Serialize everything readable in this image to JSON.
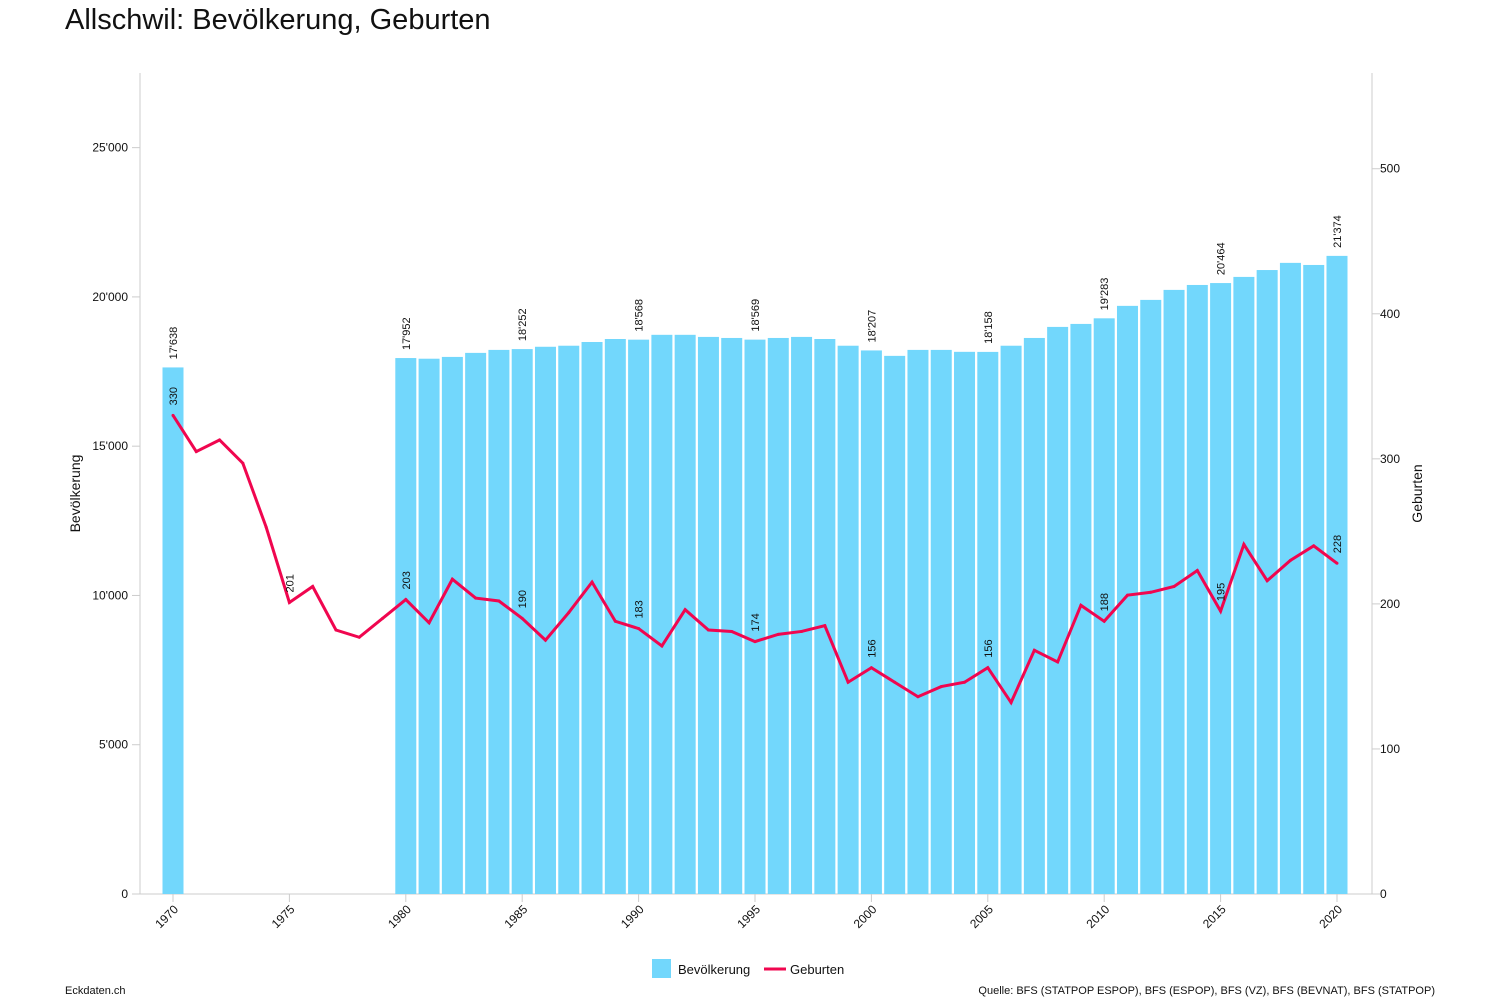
{
  "title": "Allschwil: Bevölkerung, Geburten",
  "footer": {
    "left": "Eckdaten.ch",
    "right": "Quelle: BFS (STATPOP ESPOP), BFS (ESPOP), BFS (VZ), BFS (BEVNAT), BFS (STATPOP)"
  },
  "colors": {
    "bars": "#72d7fc",
    "line": "#f0064f"
  },
  "chart_data": {
    "type": "bar+line",
    "title": "Allschwil: Bevölkerung, Geburten",
    "xlabel": "",
    "ylabel": "Bevölkerung",
    "y2label": "Geburten",
    "ylim": [
      0,
      27500
    ],
    "y2lim": [
      0,
      566
    ],
    "yticks": [
      0,
      5000,
      10000,
      15000,
      20000,
      25000
    ],
    "ytick_labels": [
      "0",
      "5'000",
      "10'000",
      "15'000",
      "20'000",
      "25'000"
    ],
    "y2ticks": [
      0,
      100,
      200,
      300,
      400,
      500
    ],
    "y2tick_labels": [
      "0",
      "100",
      "200",
      "300",
      "400",
      "500"
    ],
    "xticks": [
      1970,
      1975,
      1980,
      1985,
      1990,
      1995,
      2000,
      2005,
      2010,
      2015,
      2020
    ],
    "xtick_labels": [
      "1970",
      "1975",
      "1980",
      "1985",
      "1990",
      "1995",
      "2000",
      "2005",
      "2010",
      "2015",
      "2020"
    ],
    "legend": [
      "Bevölkerung",
      "Geburten"
    ],
    "legend_position": "bottom-center",
    "series": [
      {
        "name": "Bevölkerung",
        "type": "bar",
        "x": [
          1970,
          1980,
          1981,
          1982,
          1983,
          1984,
          1985,
          1986,
          1987,
          1988,
          1989,
          1990,
          1991,
          1992,
          1993,
          1994,
          1995,
          1996,
          1997,
          1998,
          1999,
          2000,
          2001,
          2002,
          2003,
          2004,
          2005,
          2006,
          2007,
          2008,
          2009,
          2010,
          2011,
          2012,
          2013,
          2014,
          2015,
          2016,
          2017,
          2018,
          2019,
          2020
        ],
        "values": [
          17638,
          17952,
          17930,
          17990,
          18125,
          18225,
          18252,
          18330,
          18365,
          18490,
          18590,
          18568,
          18730,
          18730,
          18660,
          18625,
          18569,
          18625,
          18660,
          18590,
          18365,
          18207,
          18025,
          18225,
          18225,
          18160,
          18158,
          18365,
          18625,
          18995,
          19095,
          19283,
          19700,
          19900,
          20235,
          20400,
          20464,
          20670,
          20900,
          21140,
          21070,
          21374
        ],
        "labels": {
          "1970": "17'638",
          "1980": "17'952",
          "1985": "18'252",
          "1990": "18'568",
          "1995": "18'569",
          "2000": "18'207",
          "2005": "18'158",
          "2010": "19'283",
          "2015": "20'464",
          "2020": "21'374"
        }
      },
      {
        "name": "Geburten",
        "type": "line",
        "x": [
          1970,
          1971,
          1972,
          1973,
          1974,
          1975,
          1976,
          1977,
          1978,
          1979,
          1980,
          1981,
          1982,
          1983,
          1984,
          1985,
          1986,
          1987,
          1988,
          1989,
          1990,
          1991,
          1992,
          1993,
          1994,
          1995,
          1996,
          1997,
          1998,
          1999,
          2000,
          2001,
          2002,
          2003,
          2004,
          2005,
          2006,
          2007,
          2008,
          2009,
          2010,
          2011,
          2012,
          2013,
          2014,
          2015,
          2016,
          2017,
          2018,
          2019,
          2020
        ],
        "values": [
          330,
          305,
          313,
          297,
          253,
          201,
          212,
          182,
          177,
          190,
          203,
          187,
          217,
          204,
          202,
          190,
          175,
          194,
          215,
          188,
          183,
          171,
          196,
          182,
          181,
          174,
          179,
          181,
          185,
          146,
          156,
          146,
          136,
          143,
          146,
          156,
          132,
          168,
          160,
          199,
          188,
          206,
          208,
          212,
          223,
          195,
          241,
          216,
          230,
          240,
          228
        ],
        "labels": {
          "1970": "330",
          "1975": "201",
          "1980": "203",
          "1985": "190",
          "1990": "183",
          "1995": "174",
          "2000": "156",
          "2005": "156",
          "2010": "188",
          "2015": "195",
          "2020": "228"
        }
      }
    ]
  }
}
